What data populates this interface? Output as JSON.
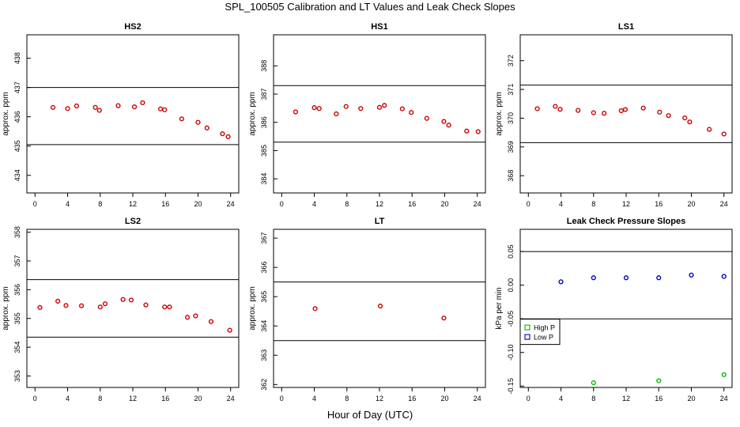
{
  "page": {
    "title": "SPL_100505  Calibration and LT Values and Leak Check Slopes",
    "xlabel": "Hour of Day (UTC)"
  },
  "chart_data": [
    {
      "type": "scatter",
      "title": "HS2",
      "ylabel": "approx. ppm",
      "xlim": [
        -1,
        25
      ],
      "ylim": [
        433.4,
        438.8
      ],
      "xticks": [
        0,
        4,
        8,
        12,
        16,
        20,
        24
      ],
      "yticks": [
        434,
        435,
        436,
        437,
        438
      ],
      "hlines": [
        437.0,
        435.05
      ],
      "series": [
        {
          "color": "#cc0000",
          "marker": "circle",
          "x": [
            2.2,
            4.0,
            5.1,
            7.4,
            7.9,
            10.2,
            12.2,
            13.2,
            15.4,
            15.9,
            18.0,
            20.0,
            21.1,
            23.0,
            23.7
          ],
          "y": [
            436.32,
            436.28,
            436.37,
            436.32,
            436.22,
            436.38,
            436.34,
            436.48,
            436.27,
            436.24,
            435.93,
            435.81,
            435.62,
            435.42,
            435.32
          ]
        }
      ]
    },
    {
      "type": "scatter",
      "title": "HS1",
      "ylabel": "approx. ppm",
      "xlim": [
        -1,
        25
      ],
      "ylim": [
        383.5,
        389.1
      ],
      "xticks": [
        0,
        4,
        8,
        12,
        16,
        20,
        24
      ],
      "yticks": [
        384,
        385,
        386,
        387,
        388
      ],
      "hlines": [
        387.3,
        385.3
      ],
      "series": [
        {
          "color": "#cc0000",
          "marker": "circle",
          "x": [
            1.7,
            4.0,
            4.6,
            6.7,
            7.9,
            9.7,
            12.0,
            12.6,
            14.8,
            15.9,
            17.8,
            19.9,
            20.5,
            22.7,
            24.1
          ],
          "y": [
            386.37,
            386.52,
            386.49,
            386.3,
            386.56,
            386.49,
            386.53,
            386.6,
            386.48,
            386.35,
            386.14,
            386.03,
            385.9,
            385.69,
            385.67
          ]
        }
      ]
    },
    {
      "type": "scatter",
      "title": "LS1",
      "ylabel": "approx. ppm",
      "xlim": [
        -1,
        25
      ],
      "ylim": [
        367.4,
        372.9
      ],
      "xticks": [
        0,
        4,
        8,
        12,
        16,
        20,
        24
      ],
      "yticks": [
        368,
        369,
        370,
        371,
        372
      ],
      "hlines": [
        371.15,
        369.15
      ],
      "series": [
        {
          "color": "#cc0000",
          "marker": "circle",
          "x": [
            1.1,
            3.3,
            3.9,
            6.1,
            8.0,
            9.3,
            11.4,
            11.9,
            14.1,
            16.1,
            17.2,
            19.2,
            19.8,
            22.2,
            24.0
          ],
          "y": [
            370.33,
            370.41,
            370.31,
            370.27,
            370.19,
            370.17,
            370.26,
            370.3,
            370.35,
            370.21,
            370.09,
            370.01,
            369.87,
            369.61,
            369.45
          ]
        }
      ]
    },
    {
      "type": "scatter",
      "title": "LS2",
      "ylabel": "approx. ppm",
      "xlim": [
        -1,
        25
      ],
      "ylim": [
        352.6,
        358.1
      ],
      "xticks": [
        0,
        4,
        8,
        12,
        16,
        20,
        24
      ],
      "yticks": [
        353,
        354,
        355,
        356,
        357,
        358
      ],
      "hlines": [
        356.35,
        354.35
      ],
      "series": [
        {
          "color": "#cc0000",
          "marker": "circle",
          "x": [
            0.6,
            2.8,
            3.8,
            5.7,
            8.0,
            8.6,
            10.8,
            11.8,
            13.6,
            15.9,
            16.5,
            18.7,
            19.7,
            21.6,
            23.9
          ],
          "y": [
            355.38,
            355.6,
            355.45,
            355.44,
            355.4,
            355.51,
            355.66,
            355.64,
            355.47,
            355.4,
            355.4,
            355.04,
            355.09,
            354.89,
            354.59
          ]
        }
      ]
    },
    {
      "type": "scatter",
      "title": "LT",
      "ylabel": "approx. ppm",
      "xlim": [
        -1,
        25
      ],
      "ylim": [
        361.9,
        367.3
      ],
      "xticks": [
        0,
        4,
        8,
        12,
        16,
        20,
        24
      ],
      "yticks": [
        362,
        363,
        364,
        365,
        366,
        367
      ],
      "hlines": [
        365.5,
        363.5
      ],
      "series": [
        {
          "color": "#cc0000",
          "marker": "circle",
          "x": [
            4.1,
            12.1,
            19.9
          ],
          "y": [
            364.59,
            364.68,
            364.27
          ]
        }
      ]
    },
    {
      "type": "scatter",
      "title": "Leak Check Pressure Slopes",
      "ylabel": "kPa per min",
      "xlim": [
        -1,
        25
      ],
      "ylim": [
        -0.152,
        0.083
      ],
      "xticks": [
        0,
        4,
        8,
        12,
        16,
        20,
        24
      ],
      "yticks": [
        -0.15,
        -0.1,
        -0.05,
        0.0,
        0.05
      ],
      "ytick_labels": [
        "-0.15",
        "-0.10",
        "-0.05",
        "0.00",
        "0.05"
      ],
      "hlines": [
        0.05,
        -0.05
      ],
      "legend": {
        "placement": "left",
        "entries": [
          "High P",
          "Low P"
        ]
      },
      "series": [
        {
          "name": "High P",
          "color": "#00bb00",
          "marker": "circle",
          "x": [
            8.0,
            16.0,
            24.0
          ],
          "y": [
            -0.145,
            -0.142,
            -0.133
          ]
        },
        {
          "name": "Low P",
          "color": "#0000cc",
          "marker": "circle",
          "x": [
            4.0,
            8.0,
            12.0,
            16.0,
            20.0,
            24.0
          ],
          "y": [
            0.005,
            0.011,
            0.011,
            0.011,
            0.015,
            0.013
          ]
        }
      ]
    }
  ]
}
